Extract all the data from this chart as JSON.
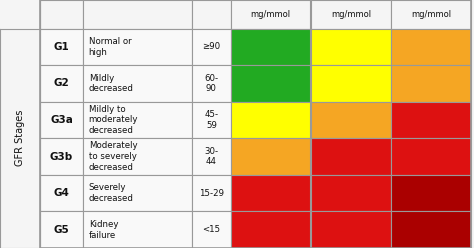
{
  "rows": [
    {
      "stage": "G1",
      "desc": "Normal or\nhigh",
      "range": "≥90",
      "colors": [
        "#22aa22",
        "#ffff00",
        "#f5a623"
      ]
    },
    {
      "stage": "G2",
      "desc": "Mildly\ndecreased",
      "range": "60-\n90",
      "colors": [
        "#22aa22",
        "#ffff00",
        "#f5a623"
      ]
    },
    {
      "stage": "G3a",
      "desc": "Mildly to\nmoderately\ndecreased",
      "range": "45-\n59",
      "colors": [
        "#ffff00",
        "#f5a623",
        "#dd1111"
      ]
    },
    {
      "stage": "G3b",
      "desc": "Moderately\nto severely\ndecreased",
      "range": "30-\n44",
      "colors": [
        "#f5a623",
        "#dd1111",
        "#dd1111"
      ]
    },
    {
      "stage": "G4",
      "desc": "Severely\ndecreased",
      "range": "15-29",
      "colors": [
        "#dd1111",
        "#dd1111",
        "#aa0000"
      ]
    },
    {
      "stage": "G5",
      "desc": "Kidney\nfailure",
      "range": "<15",
      "colors": [
        "#dd1111",
        "#dd1111",
        "#aa0000"
      ]
    }
  ],
  "col_headers": [
    "mg/mmol",
    "mg/mmol",
    "mg/mmol"
  ],
  "row_label": "GFR Stages",
  "bg_color": "#f5f5f5",
  "cell_bg": "#f9f9f9",
  "border_color": "#999999",
  "text_color": "#111111"
}
